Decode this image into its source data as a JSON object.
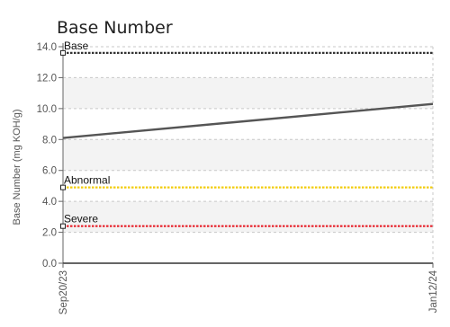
{
  "chart_data": {
    "type": "line",
    "title": "Base Number",
    "ylabel": "Base Number (mg KOH/g)",
    "xlabel": "",
    "ylim": [
      0,
      14
    ],
    "y_ticks": [
      "0.0",
      "2.0",
      "4.0",
      "6.0",
      "8.0",
      "10.0",
      "12.0",
      "14.0"
    ],
    "x_ticks": [
      "Sep20/23",
      "Jan12/24"
    ],
    "grid": true,
    "series": [
      {
        "x": [
          "Sep20/23",
          "Jan12/24"
        ],
        "values": [
          8.1,
          10.3
        ],
        "color": "#555555"
      }
    ],
    "reference_lines": [
      {
        "label": "Base",
        "value": 13.6,
        "color": "#333333"
      },
      {
        "label": "Abnormal",
        "value": 4.9,
        "color": "#f2cc0c"
      },
      {
        "label": "Severe",
        "value": 2.4,
        "color": "#e8202a"
      }
    ]
  }
}
